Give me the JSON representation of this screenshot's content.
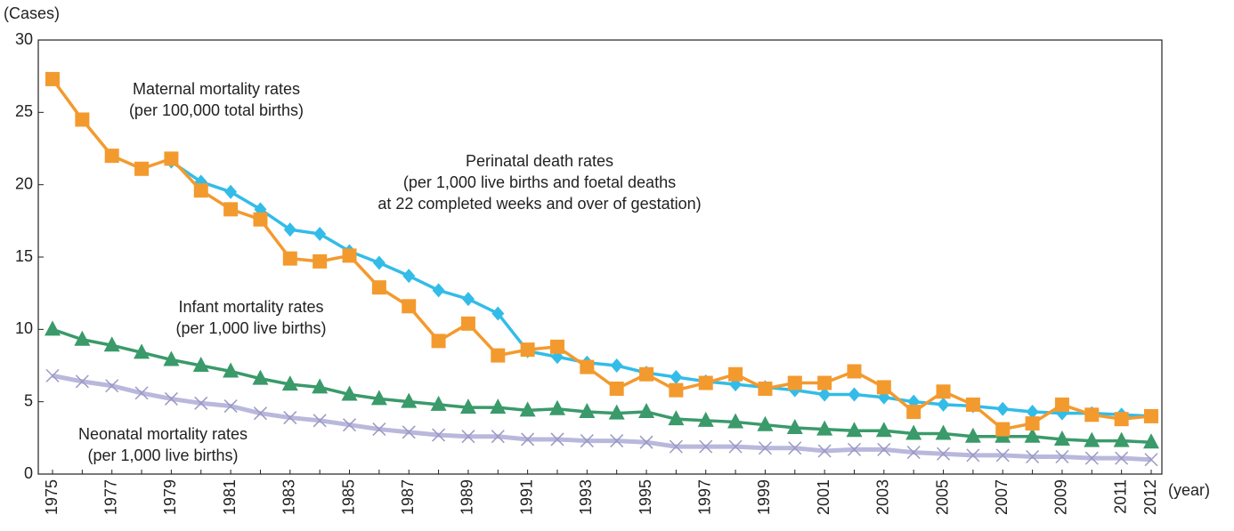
{
  "chart_data": {
    "type": "line",
    "y_label": "(Cases)",
    "x_label": "(year)",
    "categories": [
      "1975",
      null,
      "1977",
      null,
      "1979",
      null,
      "1981",
      null,
      "1983",
      null,
      "1985",
      null,
      "1987",
      null,
      "1989",
      null,
      "1991",
      null,
      "1993",
      null,
      "1995",
      null,
      "1997",
      null,
      "1999",
      null,
      "2001",
      null,
      "2003",
      null,
      "2005",
      null,
      "2007",
      null,
      "2009",
      null,
      "2011",
      "2012"
    ],
    "ylim": [
      0,
      30
    ],
    "yticks": [
      0,
      5,
      10,
      15,
      20,
      25,
      30
    ],
    "series": [
      {
        "name": "Neonatal mortality rates",
        "note": [
          "(per 1,000 live births)"
        ],
        "color": "#b9b8dc",
        "marker": "x",
        "values": [
          6.8,
          6.4,
          6.1,
          5.6,
          5.2,
          4.9,
          4.7,
          4.2,
          3.9,
          3.7,
          3.4,
          3.1,
          2.9,
          2.7,
          2.6,
          2.6,
          2.4,
          2.4,
          2.3,
          2.3,
          2.2,
          1.9,
          1.9,
          1.9,
          1.8,
          1.8,
          1.6,
          1.7,
          1.7,
          1.5,
          1.4,
          1.3,
          1.3,
          1.2,
          1.2,
          1.1,
          1.1,
          1.0
        ]
      },
      {
        "name": "Infant mortality rates",
        "note": [
          "(per 1,000 live births)"
        ],
        "color": "#3a9a6a",
        "marker": "triangle",
        "values": [
          10.0,
          9.3,
          8.9,
          8.4,
          7.9,
          7.5,
          7.1,
          6.6,
          6.2,
          6.0,
          5.5,
          5.2,
          5.0,
          4.8,
          4.6,
          4.6,
          4.4,
          4.5,
          4.3,
          4.2,
          4.3,
          3.8,
          3.7,
          3.6,
          3.4,
          3.2,
          3.1,
          3.0,
          3.0,
          2.8,
          2.8,
          2.6,
          2.6,
          2.6,
          2.4,
          2.3,
          2.3,
          2.2
        ]
      },
      {
        "name": "Perinatal death rates",
        "note": [
          "(per 1,000 live births and foetal deaths",
          "at 22 completed weeks and over of gestation)"
        ],
        "color": "#33bce8",
        "marker": "diamond",
        "values": [
          null,
          null,
          null,
          null,
          21.6,
          20.2,
          19.5,
          18.3,
          16.9,
          16.6,
          15.4,
          14.6,
          13.7,
          12.7,
          12.1,
          11.1,
          8.5,
          8.1,
          7.7,
          7.5,
          7.0,
          6.7,
          6.4,
          6.2,
          6.0,
          5.8,
          5.5,
          5.5,
          5.3,
          5.0,
          4.8,
          4.7,
          4.5,
          4.3,
          4.2,
          4.2,
          4.1,
          4.0
        ]
      },
      {
        "name": "Maternal mortality rates",
        "note": [
          "(per 100,000 total births)"
        ],
        "color": "#f39a2e",
        "marker": "square",
        "values": [
          27.3,
          24.5,
          22.0,
          21.1,
          21.8,
          19.6,
          18.3,
          17.6,
          14.9,
          14.7,
          15.1,
          12.9,
          11.6,
          9.2,
          10.4,
          8.2,
          8.6,
          8.8,
          7.4,
          5.9,
          6.9,
          5.8,
          6.3,
          6.9,
          5.9,
          6.3,
          6.3,
          7.1,
          6.0,
          4.3,
          5.7,
          4.8,
          3.1,
          3.5,
          4.8,
          4.1,
          3.8,
          4.0
        ]
      }
    ]
  }
}
